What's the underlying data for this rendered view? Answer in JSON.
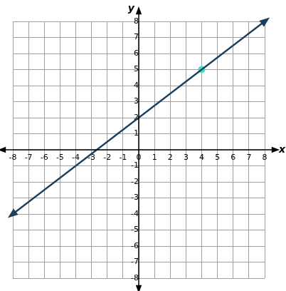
{
  "chart_data": {
    "type": "line",
    "x_label": "x",
    "y_label": "y",
    "xlim": [
      -8,
      8
    ],
    "ylim": [
      -8,
      8
    ],
    "xticks": [
      -8,
      -7,
      -6,
      -5,
      -4,
      -3,
      -2,
      -1,
      0,
      1,
      2,
      3,
      4,
      5,
      6,
      7,
      8
    ],
    "yticks": [
      -8,
      -7,
      -6,
      -5,
      -4,
      -3,
      -2,
      -1,
      0,
      1,
      2,
      3,
      4,
      5,
      6,
      7,
      8
    ],
    "grid": true,
    "series": [
      {
        "type": "line",
        "color": "#1b3f5c",
        "marker": "arrow",
        "x": [
          -8,
          8
        ],
        "values": [
          -4,
          8
        ]
      },
      {
        "type": "scatter",
        "color": "#3fe0c5",
        "marker": "circle",
        "x": [
          4
        ],
        "values": [
          5
        ]
      }
    ]
  }
}
